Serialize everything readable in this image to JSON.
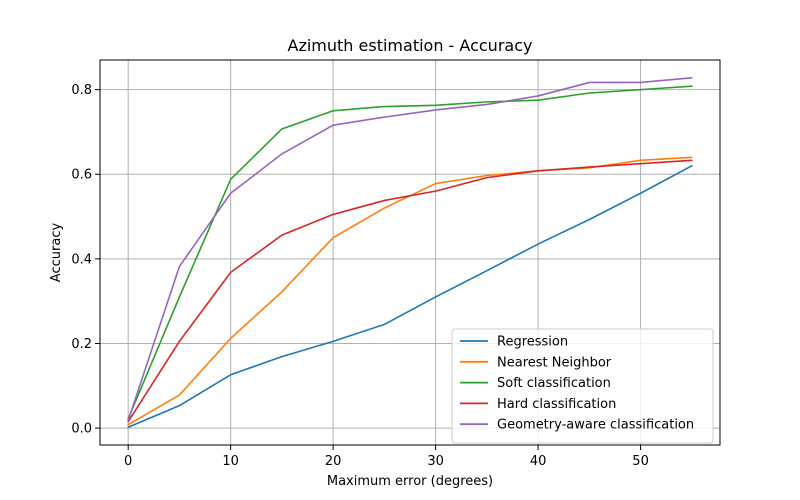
{
  "chart_data": {
    "type": "line",
    "title": "Azimuth estimation - Accuracy",
    "xlabel": "Maximum error (degrees)",
    "ylabel": "Accuracy",
    "xlim": [
      -2.75,
      57.75
    ],
    "ylim": [
      -0.04,
      0.87
    ],
    "xticks": [
      0,
      10,
      20,
      30,
      40,
      50
    ],
    "xtick_labels": [
      "0",
      "10",
      "20",
      "30",
      "40",
      "50"
    ],
    "yticks": [
      0.0,
      0.2,
      0.4,
      0.6,
      0.8
    ],
    "ytick_labels": [
      "0.0",
      "0.2",
      "0.4",
      "0.6",
      "0.8"
    ],
    "grid": true,
    "legend_position": "lower-right",
    "x": [
      0,
      5,
      10,
      15,
      20,
      25,
      30,
      35,
      40,
      45,
      50,
      55
    ],
    "series": [
      {
        "name": "Regression",
        "color": "#1f77b4",
        "values": [
          0.002,
          0.053,
          0.126,
          0.169,
          0.205,
          0.245,
          0.31,
          0.372,
          0.435,
          0.493,
          0.555,
          0.62
        ]
      },
      {
        "name": "Nearest Neighbor",
        "color": "#ff7f0e",
        "values": [
          0.008,
          0.078,
          0.212,
          0.322,
          0.45,
          0.52,
          0.578,
          0.597,
          0.608,
          0.615,
          0.633,
          0.64
        ]
      },
      {
        "name": "Soft classification",
        "color": "#2ca02c",
        "values": [
          0.022,
          0.31,
          0.588,
          0.707,
          0.75,
          0.76,
          0.763,
          0.771,
          0.775,
          0.792,
          0.8,
          0.808
        ]
      },
      {
        "name": "Hard classification",
        "color": "#d62728",
        "values": [
          0.015,
          0.205,
          0.368,
          0.456,
          0.505,
          0.538,
          0.56,
          0.592,
          0.608,
          0.617,
          0.625,
          0.633
        ]
      },
      {
        "name": "Geometry-aware classification",
        "color": "#9467bd",
        "values": [
          0.018,
          0.382,
          0.555,
          0.648,
          0.716,
          0.735,
          0.752,
          0.765,
          0.785,
          0.817,
          0.817,
          0.828
        ]
      }
    ]
  }
}
